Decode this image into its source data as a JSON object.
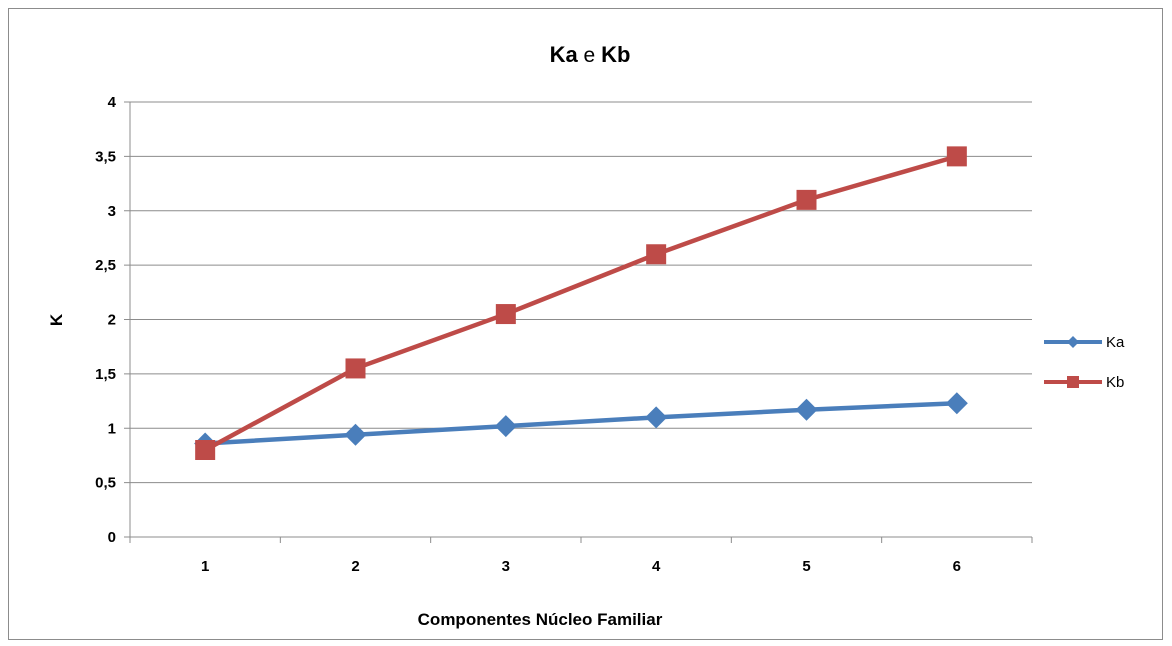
{
  "chart_data": {
    "type": "line",
    "title_parts": [
      "Ka",
      " e ",
      "Kb"
    ],
    "xlabel": "Componentes Núcleo Familiar",
    "ylabel": "K",
    "categories": [
      "1",
      "2",
      "3",
      "4",
      "5",
      "6"
    ],
    "ylim": [
      0,
      4
    ],
    "yticks": [
      "0",
      "0,5",
      "1",
      "1,5",
      "2",
      "2,5",
      "3",
      "3,5",
      "4"
    ],
    "ytick_values": [
      0,
      0.5,
      1,
      1.5,
      2,
      2.5,
      3,
      3.5,
      4
    ],
    "grid": true,
    "legend_position": "right",
    "series": [
      {
        "name": "Ka",
        "values": [
          0.86,
          0.94,
          1.02,
          1.1,
          1.17,
          1.23
        ],
        "color": "#4a7ebb",
        "marker": "diamond"
      },
      {
        "name": "Kb",
        "values": [
          0.8,
          1.55,
          2.05,
          2.6,
          3.1,
          3.5
        ],
        "color": "#be4b48",
        "marker": "square"
      }
    ]
  }
}
